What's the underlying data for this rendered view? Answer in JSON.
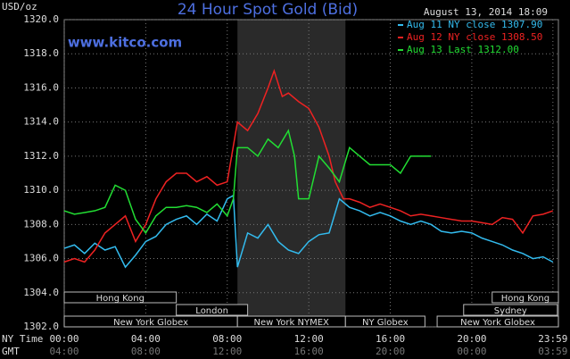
{
  "chart_data": {
    "type": "line",
    "title": "24 Hour Spot Gold (Bid)",
    "subtitle": "www.kitco.com",
    "date_label": "August 13, 2014 18:09",
    "y_label": "USD/oz",
    "x_label": "NY Time",
    "x2_label": "GMT",
    "xlim": [
      0,
      24.25
    ],
    "ylim": [
      1302,
      1320
    ],
    "yticks": [
      {
        "value": 1302,
        "label": "1302.0"
      },
      {
        "value": 1304,
        "label": "1304.0"
      },
      {
        "value": 1306,
        "label": "1306.0"
      },
      {
        "value": 1308,
        "label": "1308.0"
      },
      {
        "value": 1310,
        "label": "1310.0"
      },
      {
        "value": 1312,
        "label": "1312.0"
      },
      {
        "value": 1314,
        "label": "1314.0"
      },
      {
        "value": 1316,
        "label": "1316.0"
      },
      {
        "value": 1318,
        "label": "1318.0"
      },
      {
        "value": 1320,
        "label": "1320.0"
      }
    ],
    "xticks": [
      {
        "value": 0,
        "label": "00:00"
      },
      {
        "value": 4,
        "label": "04:00"
      },
      {
        "value": 8,
        "label": "08:00"
      },
      {
        "value": 12,
        "label": "12:00"
      },
      {
        "value": 16,
        "label": "16:00"
      },
      {
        "value": 20,
        "label": "20:00"
      },
      {
        "value": 23.98,
        "label": "23:59"
      }
    ],
    "x2ticks": [
      {
        "value": 0,
        "label": "04:00"
      },
      {
        "value": 4,
        "label": "08:00"
      },
      {
        "value": 8,
        "label": "12:00"
      },
      {
        "value": 12,
        "label": "16:00"
      },
      {
        "value": 16,
        "label": "20:00"
      },
      {
        "value": 20,
        "label": "00:00"
      },
      {
        "value": 23.98,
        "label": "03:59"
      }
    ],
    "grid": true,
    "legend": "top-right",
    "shaded": [
      8.5,
      13.8
    ],
    "sessions": [
      {
        "name": "Hong Kong",
        "row": 0,
        "start": 0,
        "end": 5.5
      },
      {
        "name": "Hong Kong",
        "row": 0,
        "start": 21,
        "end": 24.25
      },
      {
        "name": "London",
        "row": 1,
        "start": 5.5,
        "end": 9
      },
      {
        "name": "Sydney",
        "row": 1,
        "start": 19.6,
        "end": 24.2
      },
      {
        "name": "New York Globex",
        "row": 2,
        "start": 0,
        "end": 8.5
      },
      {
        "name": "New York NYMEX",
        "row": 2,
        "start": 8.5,
        "end": 13.8
      },
      {
        "name": "NY Globex",
        "row": 2,
        "start": 13.8,
        "end": 17.7
      },
      {
        "name": "New York Globex",
        "row": 2,
        "start": 18.3,
        "end": 24.25
      }
    ],
    "series": [
      {
        "name": "Aug 11 NY close 1307.90",
        "color": "#33bbee",
        "x": [
          0,
          0.5,
          1,
          1.5,
          2,
          2.5,
          3,
          3.5,
          4,
          4.5,
          5,
          5.5,
          6,
          6.5,
          7,
          7.5,
          8,
          8.3,
          8.5,
          9,
          9.5,
          10,
          10.5,
          11,
          11.5,
          12,
          12.5,
          13,
          13.5,
          14,
          14.5,
          15,
          15.5,
          16,
          16.5,
          17,
          17.5,
          18,
          18.5,
          19,
          19.5,
          20,
          20.5,
          21,
          21.5,
          22,
          22.5,
          23,
          23.5,
          23.98
        ],
        "values": [
          1306.6,
          1306.8,
          1306.3,
          1306.9,
          1306.5,
          1306.7,
          1305.5,
          1306.2,
          1307.0,
          1307.3,
          1308.0,
          1308.3,
          1308.5,
          1308.0,
          1308.6,
          1308.2,
          1309.5,
          1309.7,
          1305.5,
          1307.5,
          1307.2,
          1308.0,
          1307.0,
          1306.5,
          1306.3,
          1307.0,
          1307.4,
          1307.5,
          1309.5,
          1309.0,
          1308.8,
          1308.5,
          1308.7,
          1308.5,
          1308.2,
          1308.0,
          1308.2,
          1308.0,
          1307.6,
          1307.5,
          1307.6,
          1307.5,
          1307.2,
          1307.0,
          1306.8,
          1306.5,
          1306.3,
          1306.0,
          1306.1,
          1305.8
        ]
      },
      {
        "name": "Aug 12 NY close 1308.50",
        "color": "#ee2222",
        "x": [
          0,
          0.5,
          1,
          1.5,
          2,
          2.5,
          3,
          3.5,
          4,
          4.5,
          5,
          5.5,
          6,
          6.5,
          7,
          7.5,
          8,
          8.5,
          9,
          9.5,
          10,
          10.3,
          10.7,
          11,
          11.5,
          12,
          12.5,
          13,
          13.3,
          13.7,
          14,
          14.5,
          15,
          15.5,
          16,
          16.5,
          17,
          17.5,
          18,
          18.5,
          19,
          19.5,
          20,
          20.5,
          21,
          21.5,
          22,
          22.5,
          23,
          23.5,
          23.98
        ],
        "values": [
          1305.8,
          1306.0,
          1305.8,
          1306.5,
          1307.5,
          1308.0,
          1308.5,
          1307.0,
          1308.0,
          1309.5,
          1310.5,
          1311.0,
          1311.0,
          1310.5,
          1310.8,
          1310.3,
          1310.5,
          1314.0,
          1313.5,
          1314.5,
          1316.0,
          1317.0,
          1315.5,
          1315.7,
          1315.2,
          1314.8,
          1313.7,
          1312.0,
          1310.5,
          1309.5,
          1309.5,
          1309.3,
          1309.0,
          1309.2,
          1309.0,
          1308.8,
          1308.5,
          1308.6,
          1308.5,
          1308.4,
          1308.3,
          1308.2,
          1308.2,
          1308.1,
          1308.0,
          1308.4,
          1308.3,
          1307.5,
          1308.5,
          1308.6,
          1308.8
        ]
      },
      {
        "name": "Aug 13 Last 1312.00",
        "color": "#22dd33",
        "x": [
          0,
          0.5,
          1,
          1.5,
          2,
          2.5,
          3,
          3.5,
          4,
          4.5,
          5,
          5.5,
          6,
          6.5,
          7,
          7.5,
          8,
          8.3,
          8.5,
          9,
          9.5,
          10,
          10.5,
          11,
          11.3,
          11.5,
          12,
          12.5,
          13,
          13.5,
          14,
          14.5,
          15,
          15.5,
          16,
          16.5,
          17,
          17.5,
          18
        ],
        "values": [
          1308.8,
          1308.6,
          1308.7,
          1308.8,
          1309.0,
          1310.3,
          1310.0,
          1308.3,
          1307.5,
          1308.5,
          1309.0,
          1309.0,
          1309.1,
          1309.0,
          1308.7,
          1309.2,
          1308.5,
          1309.5,
          1312.5,
          1312.5,
          1312.0,
          1313.0,
          1312.5,
          1313.5,
          1312.0,
          1309.5,
          1309.5,
          1312.0,
          1311.3,
          1310.5,
          1312.5,
          1312.0,
          1311.5,
          1311.5,
          1311.5,
          1311.0,
          1312.0,
          1312.0,
          1312.0
        ]
      }
    ]
  }
}
